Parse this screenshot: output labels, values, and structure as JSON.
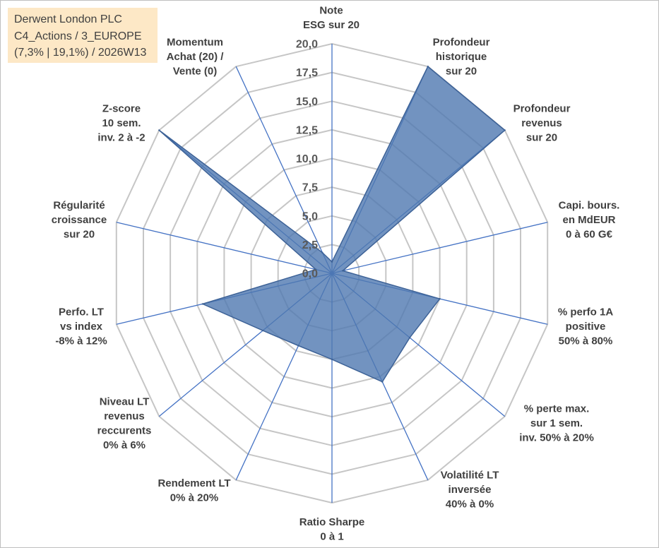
{
  "chart_data": {
    "type": "radar",
    "title": "Derwent London PLC",
    "subtitle": [
      "C4_Actions / 3_EUROPE",
      "(7,3% | 19,1%) / 2026W13"
    ],
    "categories": [
      [
        "Note",
        "ESG sur 20"
      ],
      [
        "Profondeur",
        "historique",
        "sur 20"
      ],
      [
        "Profondeur",
        "revenus",
        "sur 20"
      ],
      [
        "Capi. bours.",
        "en MdEUR",
        "0 à 60 G€"
      ],
      [
        "% perfo 1A",
        "positive",
        "50% à 80%"
      ],
      [
        "% perte max.",
        "sur 1 sem.",
        "inv. 50% à 20%"
      ],
      [
        "Volatilité LT",
        "inversée",
        "40% à 0%"
      ],
      [
        "Ratio Sharpe",
        "0 à 1"
      ],
      [
        "Rendement LT",
        "0% à 20%"
      ],
      [
        "Niveau LT",
        "revenus",
        "reccurents",
        "0% à 6%"
      ],
      [
        "Perfo. LT",
        "vs index",
        "-8% à 12%"
      ],
      [
        "Régularité",
        "croissance",
        "sur 20"
      ],
      [
        "Z-score",
        "10 sem.",
        "inv. 2 à -2"
      ],
      [
        "Momentum",
        "Achat (20) /",
        "Vente (0)"
      ]
    ],
    "values": [
      1,
      20,
      20,
      1,
      10,
      9,
      10.5,
      7.5,
      7,
      8,
      12,
      1.5,
      20,
      2
    ],
    "rlim": [
      0,
      20
    ],
    "ticks": [
      "0,0",
      "2,5",
      "5,0",
      "7,5",
      "10,0",
      "12,5",
      "15,0",
      "17,5",
      "20,0"
    ],
    "grid": true,
    "legend": false,
    "colors": {
      "area": "#4f78b0",
      "area_edge": "#3d6297",
      "spokes": "#4472c4",
      "grid": "#c6c6c6",
      "title_box": "#fde8c6"
    }
  }
}
